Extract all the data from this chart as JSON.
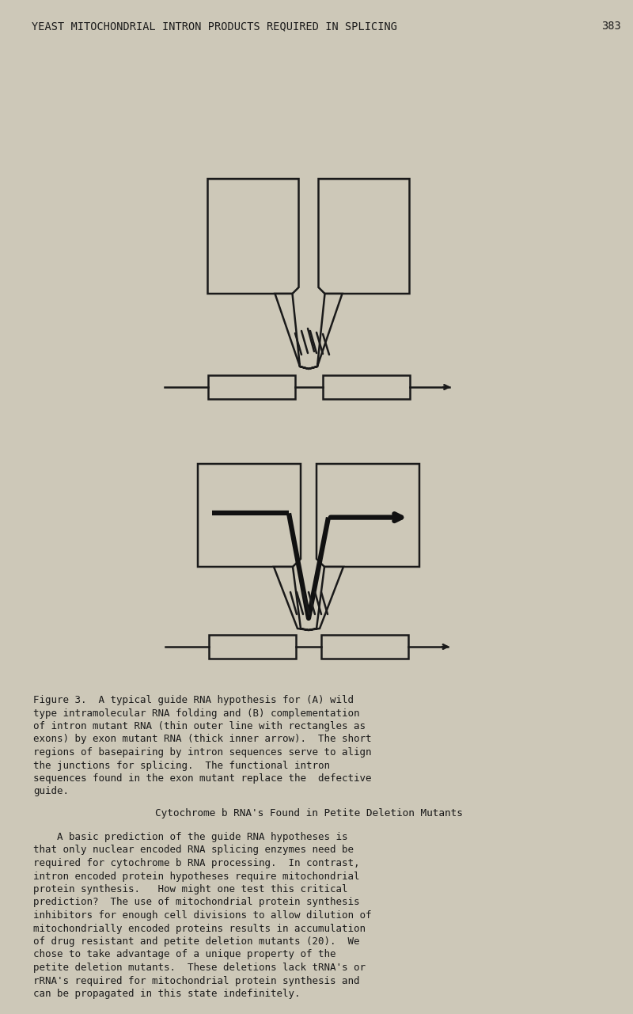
{
  "bg_color": "#cdc8b8",
  "title_text": "YEAST MITOCHONDRIAL INTRON PRODUCTS REQUIRED IN SPLICING",
  "page_num": "383",
  "title_fontsize": 9.8,
  "body_fontsize": 9.0,
  "caption_fontsize": 9.0,
  "section_fontsize": 9.2,
  "figure_caption_lines": [
    "Figure 3.  A typical guide RNA hypothesis for (A) wild",
    "type intramolecular RNA folding and (B) complementation",
    "of intron mutant RNA (thin outer line with rectangles as",
    "exons) by exon mutant RNA (thick inner arrow).  The short",
    "regions of basepairing by intron sequences serve to align",
    "the junctions for splicing.  The functional intron",
    "sequences found in the exon mutant replace the  defective",
    "guide."
  ],
  "section_title": "Cytochrome b RNA's Found in Petite Deletion Mutants",
  "body_text_lines": [
    "    A basic prediction of the guide RNA hypotheses is",
    "that only nuclear encoded RNA splicing enzymes need be",
    "required for cytochrome b RNA processing.  In contrast,",
    "intron encoded protein hypotheses require mitochondrial",
    "protein synthesis.   How might one test this critical",
    "prediction?  The use of mitochondrial protein synthesis",
    "inhibitors for enough cell divisions to allow dilution of",
    "mitochondrially encoded proteins results in accumulation",
    "of drug resistant and petite deletion mutants (20).  We",
    "chose to take advantage of a unique property of the",
    "petite deletion mutants.  These deletions lack tRNA's or",
    "rRNA's required for mitochondrial protein synthesis and",
    "can be propagated in this state indefinitely."
  ],
  "line_color": "#1a1a1a",
  "thick_line_color": "#111111"
}
